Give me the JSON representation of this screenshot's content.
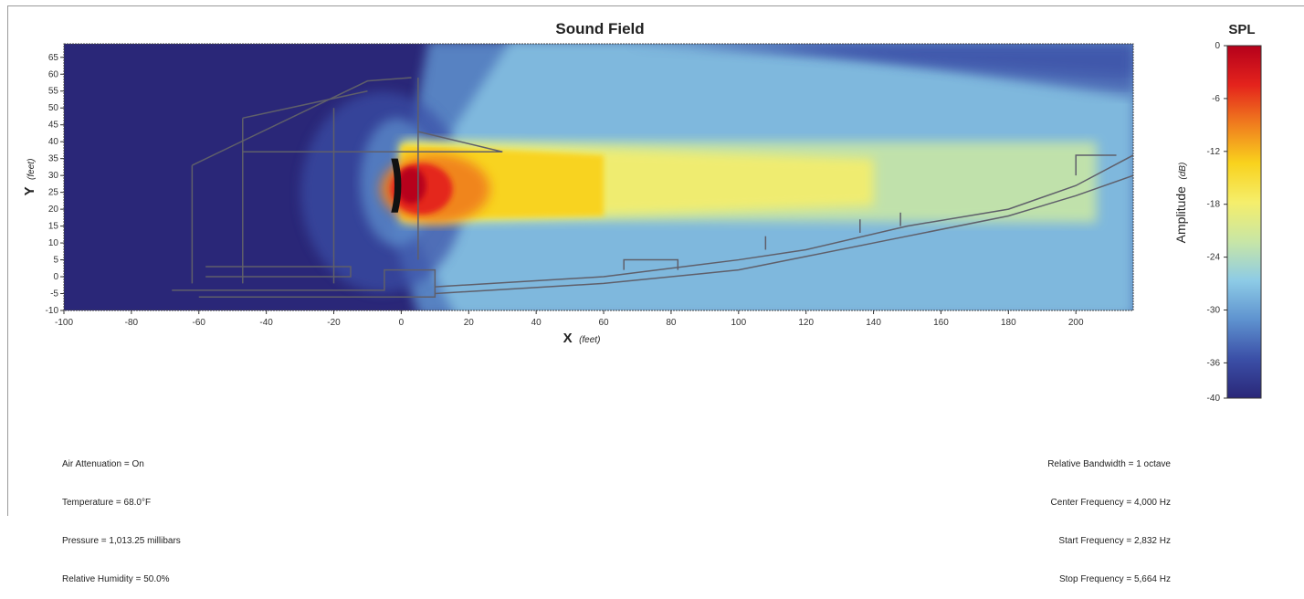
{
  "chart_data": {
    "type": "heatmap",
    "title": "Sound Field",
    "xlabel": "X",
    "xlabel_unit": "(feet)",
    "ylabel": "Y",
    "ylabel_unit": "(feet)",
    "xlim": [
      -100,
      217
    ],
    "ylim": [
      -10,
      69
    ],
    "x_ticks": [
      -100,
      -80,
      -60,
      -40,
      -20,
      0,
      20,
      40,
      60,
      80,
      100,
      120,
      140,
      160,
      180,
      200
    ],
    "x_tick_labels": [
      "-100",
      "-80",
      "-60",
      "-40",
      "-20",
      "0",
      "20",
      "40",
      "60",
      "80",
      "100",
      "120",
      "140",
      "160",
      "180",
      "200"
    ],
    "y_ticks": [
      -10,
      -5,
      0,
      5,
      10,
      15,
      20,
      25,
      30,
      35,
      40,
      45,
      50,
      55,
      60,
      65
    ],
    "y_tick_labels": [
      "-10",
      "-5",
      "0",
      "5",
      "10",
      "15",
      "20",
      "25",
      "30",
      "35",
      "40",
      "45",
      "50",
      "55",
      "60",
      "65"
    ],
    "source": {
      "x": 0,
      "y": 25
    },
    "beam": {
      "axis_y": 30,
      "near_half_width": 10,
      "far_half_width": 8,
      "far_x": 217
    },
    "colorbar": {
      "title": "SPL",
      "label": "Amplitude",
      "unit": "(dB)",
      "range": [
        -40,
        0
      ],
      "ticks": [
        0,
        -6,
        -12,
        -18,
        -24,
        -30,
        -36,
        -40
      ],
      "tick_labels": [
        "0",
        "-6",
        "-12",
        "-18",
        "-24",
        "-30",
        "-36",
        "-40"
      ],
      "colors": [
        "#b5001b",
        "#e4231c",
        "#f07d1e",
        "#f9d21d",
        "#f5ee6b",
        "#c8e6a6",
        "#8dcbe6",
        "#5e92cf",
        "#3b4fa7",
        "#2a2778"
      ]
    },
    "background_color": "#2a2778",
    "grid": false
  },
  "settings_left": [
    "Air Attenuation = On",
    "Temperature = 68.0°F",
    "Pressure = 1,013.25 millibars",
    "Relative Humidity = 50.0%"
  ],
  "settings_right": [
    "Relative Bandwidth = 1 octave",
    "Center Frequency = 4,000 Hz",
    "Start Frequency = 2,832 Hz",
    "Stop Frequency = 5,664 Hz"
  ]
}
